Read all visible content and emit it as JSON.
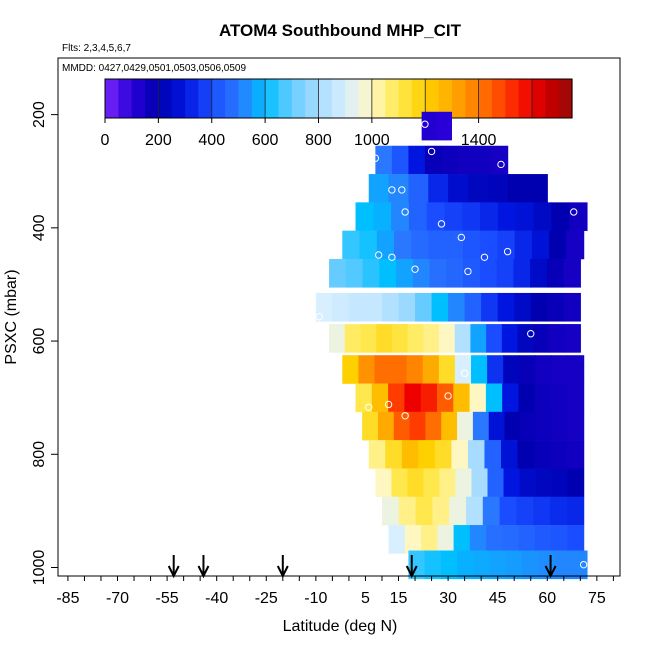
{
  "chart_data": {
    "type": "heatmap",
    "title": "ATOM4 Southbound MHP_CIT",
    "flights_label": "Flts: 2,3,4,5,6,7",
    "mmdd_label": "MMDD: 0427,0429,0501,0503,0506,0509",
    "xlabel": "Latitude (deg N)",
    "ylabel": "PSXC (mbar)",
    "xlim": [
      -88,
      82
    ],
    "ylim": [
      1015,
      100
    ],
    "x_ticks": [
      -85,
      -70,
      -55,
      -40,
      -25,
      -10,
      5,
      15,
      30,
      45,
      60,
      75
    ],
    "y_ticks": [
      200,
      400,
      600,
      800,
      1000
    ],
    "colorbar": {
      "ticks": [
        0,
        200,
        400,
        600,
        800,
        1000,
        1400
      ],
      "range": [
        0,
        1750
      ],
      "step": 50
    },
    "arrows_lat": [
      -53,
      -44,
      -20,
      19,
      61
    ],
    "rows": [
      {
        "p": 220,
        "lat0": 22,
        "lat1": 31,
        "vals": [
          120,
          100
        ]
      },
      {
        "p": 280,
        "lat0": 8,
        "lat1": 48,
        "vals": [
          500,
          420,
          300,
          180,
          170,
          160,
          160,
          150
        ]
      },
      {
        "p": 330,
        "lat0": 6,
        "lat1": 60,
        "vals": [
          560,
          520,
          450,
          330,
          260,
          230,
          220,
          200,
          200
        ]
      },
      {
        "p": 380,
        "lat0": 2,
        "lat1": 72,
        "vals": [
          600,
          580,
          520,
          450,
          400,
          380,
          360,
          330,
          300,
          280,
          240,
          200,
          160
        ]
      },
      {
        "p": 430,
        "lat0": -2,
        "lat1": 71,
        "vals": [
          650,
          620,
          560,
          500,
          470,
          450,
          450,
          420,
          400,
          380,
          330,
          280,
          200,
          150
        ]
      },
      {
        "p": 480,
        "lat0": -6,
        "lat1": 70,
        "vals": [
          700,
          680,
          640,
          600,
          560,
          520,
          480,
          460,
          430,
          400,
          380,
          330,
          250,
          180,
          150
        ]
      },
      {
        "p": 540,
        "lat0": -10,
        "lat1": 70,
        "vals": [
          900,
          880,
          860,
          860,
          820,
          780,
          700,
          600,
          520,
          450,
          360,
          300,
          250,
          200,
          180,
          160
        ]
      },
      {
        "p": 595,
        "lat0": -6,
        "lat1": 70,
        "vals": [
          950,
          1080,
          1100,
          1150,
          1120,
          1080,
          1050,
          1000,
          820,
          560,
          400,
          300,
          230,
          180,
          160,
          150
        ]
      },
      {
        "p": 650,
        "lat0": -2,
        "lat1": 71,
        "vals": [
          1200,
          1350,
          1420,
          1420,
          1380,
          1300,
          1150,
          900,
          600,
          350,
          220,
          180,
          160,
          150,
          150
        ]
      },
      {
        "p": 700,
        "lat0": 2,
        "lat1": 71,
        "vals": [
          1100,
          1250,
          1500,
          1600,
          1550,
          1450,
          1250,
          1000,
          600,
          300,
          200,
          170,
          160,
          150
        ]
      },
      {
        "p": 750,
        "lat0": 4,
        "lat1": 71,
        "vals": [
          1150,
          1300,
          1450,
          1500,
          1420,
          1250,
          950,
          500,
          280,
          200,
          180,
          170,
          160,
          150
        ]
      },
      {
        "p": 800,
        "lat0": 6,
        "lat1": 71,
        "vals": [
          1050,
          1150,
          1250,
          1200,
          1150,
          1000,
          800,
          450,
          280,
          200,
          180,
          170,
          160
        ]
      },
      {
        "p": 850,
        "lat0": 8,
        "lat1": 71,
        "vals": [
          1000,
          1100,
          1150,
          1100,
          1050,
          950,
          800,
          450,
          300,
          250,
          230,
          220,
          200
        ]
      },
      {
        "p": 900,
        "lat0": 10,
        "lat1": 71,
        "vals": [
          950,
          1050,
          1100,
          1050,
          950,
          820,
          500,
          400,
          380,
          360,
          340,
          330
        ]
      },
      {
        "p": 950,
        "lat0": 12,
        "lat1": 71,
        "vals": [
          900,
          1000,
          1050,
          950,
          600,
          520,
          480,
          470,
          450,
          430,
          420,
          400
        ]
      },
      {
        "p": 995,
        "lat0": 18,
        "lat1": 72,
        "vals": [
          650,
          620,
          600,
          580,
          570,
          560,
          550,
          540,
          530,
          520,
          520
        ]
      }
    ],
    "points": [
      {
        "lat": 23,
        "p": 217
      },
      {
        "lat": 25,
        "p": 265
      },
      {
        "lat": 8,
        "p": 277
      },
      {
        "lat": 46,
        "p": 288
      },
      {
        "lat": 13,
        "p": 333
      },
      {
        "lat": 16,
        "p": 333
      },
      {
        "lat": 17,
        "p": 372
      },
      {
        "lat": 68,
        "p": 372
      },
      {
        "lat": 28,
        "p": 393
      },
      {
        "lat": 34,
        "p": 417
      },
      {
        "lat": 9,
        "p": 448
      },
      {
        "lat": 13,
        "p": 452
      },
      {
        "lat": 41,
        "p": 452
      },
      {
        "lat": 48,
        "p": 442
      },
      {
        "lat": 20,
        "p": 473
      },
      {
        "lat": 36,
        "p": 477
      },
      {
        "lat": -9,
        "p": 557
      },
      {
        "lat": 55,
        "p": 587
      },
      {
        "lat": 35,
        "p": 657
      },
      {
        "lat": 30,
        "p": 697
      },
      {
        "lat": 6,
        "p": 717
      },
      {
        "lat": 12,
        "p": 712
      },
      {
        "lat": 17,
        "p": 732
      },
      {
        "lat": 71,
        "p": 995
      }
    ]
  }
}
